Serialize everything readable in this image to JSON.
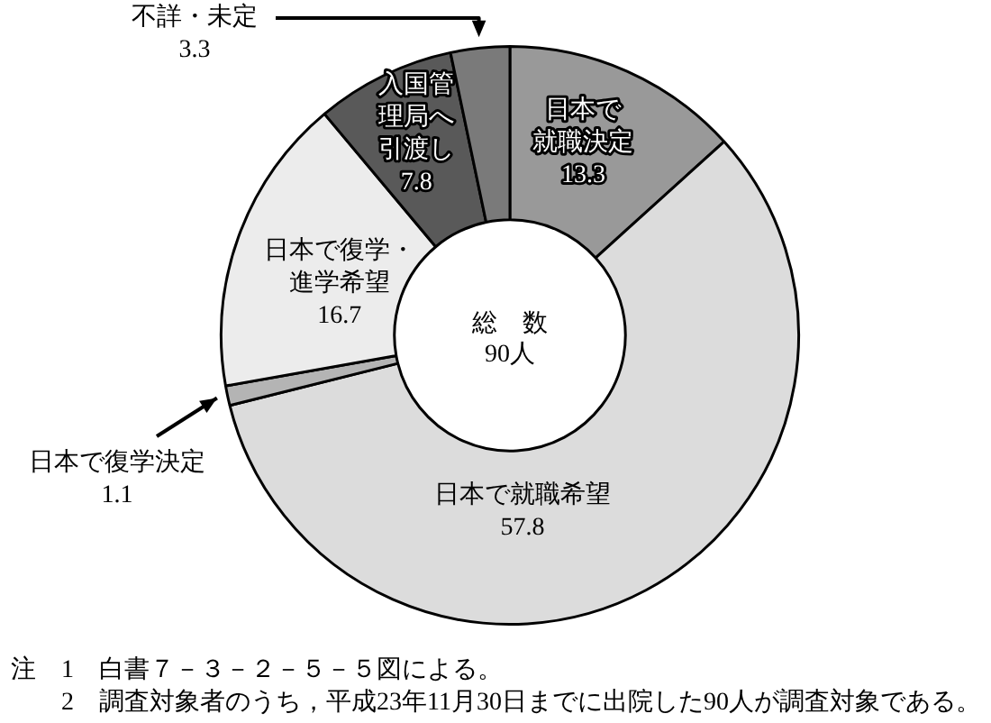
{
  "chart_data": {
    "type": "donut",
    "categories": [
      "日本で就職決定",
      "日本で就職希望",
      "日本で復学決定",
      "日本で復学・進学希望",
      "入国管理局へ引渡し",
      "不詳・未定"
    ],
    "values": [
      13.3,
      57.8,
      1.1,
      16.7,
      7.8,
      3.3
    ],
    "colors": [
      "#999999",
      "#dcdcdc",
      "#b4b4b4",
      "#ececec",
      "#595959",
      "#7a7a7a"
    ],
    "data_labels": true,
    "legend": false,
    "annotations": [
      "総　数",
      "90人",
      "注　1　白書７－３－２－５－５図による。",
      "2　調査対象者のうち，平成23年11月30日までに出院した90人が調査対象である。"
    ]
  }
}
